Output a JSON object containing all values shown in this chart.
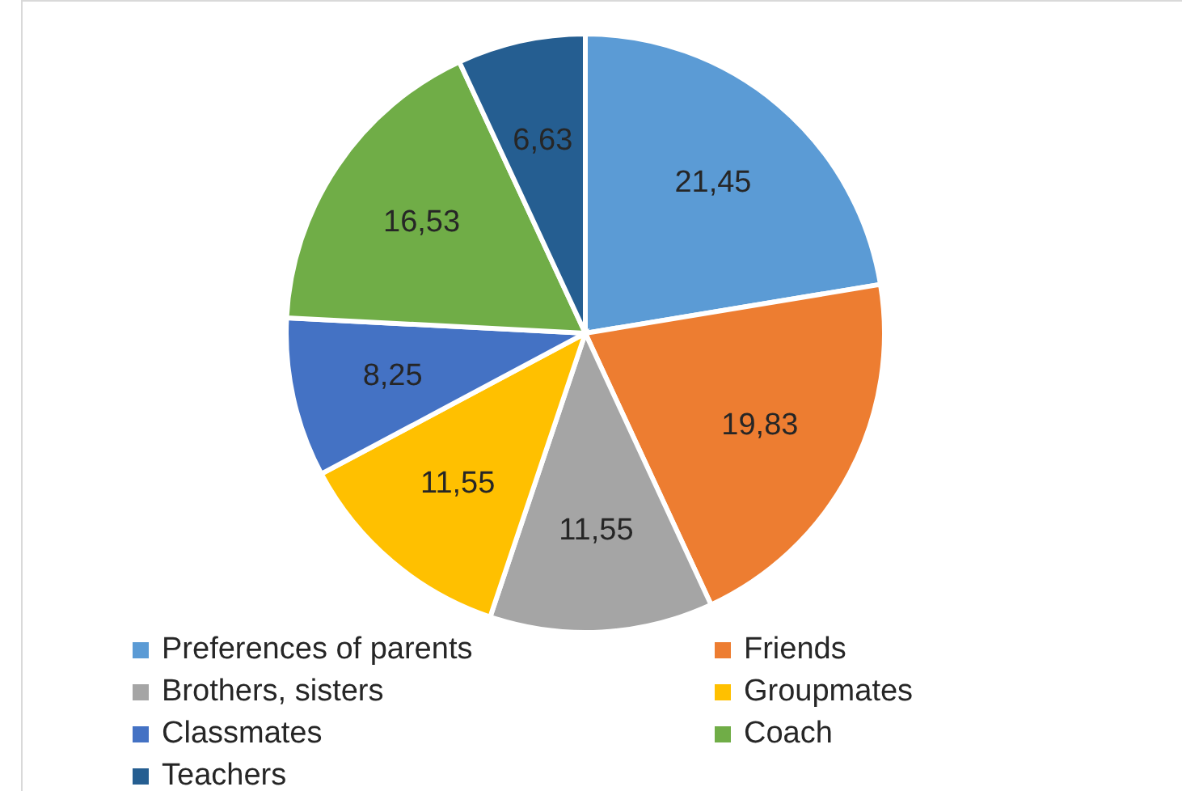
{
  "chart_data": {
    "type": "pie",
    "categories": [
      "Preferences of parents",
      "Friends",
      "Brothers, sisters",
      "Groupmates",
      "Classmates",
      "Coach",
      "Teachers"
    ],
    "values": [
      21.45,
      19.83,
      11.55,
      11.55,
      8.25,
      16.53,
      6.63
    ],
    "colors": [
      "#5b9bd5",
      "#ed7d31",
      "#a5a5a5",
      "#ffc000",
      "#4472c4",
      "#70ad47",
      "#255e91"
    ],
    "value_labels": [
      "21,45",
      "19,83",
      "11,55",
      "11,55",
      "8,25",
      "16,53",
      "6,63"
    ],
    "legend": "bottom"
  }
}
